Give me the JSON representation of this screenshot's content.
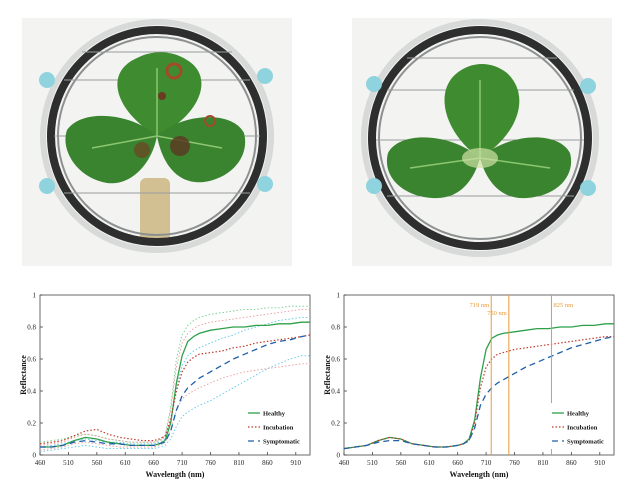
{
  "colors": {
    "healthy": "#2ea04a",
    "incubation": "#c0392b",
    "symptomatic": "#1f5fa8",
    "light_green": "#6fd08a",
    "light_red": "#e89a9a",
    "light_blue": "#5bc8e8",
    "marker": "#e69a3c",
    "leaf": "#3d8a2e",
    "ring": "#2e2e2e",
    "clip": "#8fd3de"
  },
  "photos": [
    {
      "name": "infected-leaf-photo",
      "icon": "strawberry-leaf-with-lesions"
    },
    {
      "name": "healthy-leaf-photo",
      "icon": "strawberry-leaf"
    }
  ],
  "chart_data": [
    {
      "type": "line",
      "title": "",
      "xlabel": "Wavelength (nm)",
      "ylabel": "Reflectance",
      "xlim": [
        460,
        935
      ],
      "ylim": [
        0,
        1
      ],
      "x_ticks": [
        460,
        510,
        560,
        610,
        660,
        710,
        760,
        810,
        860,
        910
      ],
      "y_ticks": [
        0,
        0.2,
        0.4,
        0.6,
        0.8,
        1
      ],
      "y_tick_labels": [
        "0",
        "0.2",
        "0.4",
        "0.6",
        "0.8",
        "1"
      ],
      "grid": false,
      "legend": "bottom-right",
      "legend_entries": [
        "Healthy",
        "Incubation",
        "Symptomatic"
      ],
      "x": [
        460,
        480,
        500,
        520,
        540,
        560,
        580,
        600,
        620,
        640,
        660,
        670,
        680,
        690,
        700,
        710,
        720,
        730,
        740,
        760,
        780,
        800,
        820,
        840,
        860,
        880,
        900,
        920,
        935
      ],
      "series": [
        {
          "name": "Healthy",
          "style": "solid",
          "color": "healthy",
          "values": [
            0.05,
            0.05,
            0.06,
            0.09,
            0.11,
            0.1,
            0.08,
            0.07,
            0.06,
            0.06,
            0.06,
            0.07,
            0.09,
            0.2,
            0.45,
            0.62,
            0.71,
            0.74,
            0.76,
            0.78,
            0.79,
            0.8,
            0.8,
            0.81,
            0.81,
            0.82,
            0.82,
            0.83,
            0.83
          ]
        },
        {
          "name": "Incubation",
          "style": "dotted",
          "color": "incubation",
          "values": [
            0.07,
            0.08,
            0.09,
            0.12,
            0.15,
            0.16,
            0.13,
            0.11,
            0.1,
            0.09,
            0.09,
            0.1,
            0.12,
            0.22,
            0.4,
            0.52,
            0.58,
            0.61,
            0.63,
            0.64,
            0.65,
            0.67,
            0.68,
            0.7,
            0.71,
            0.72,
            0.73,
            0.74,
            0.75
          ]
        },
        {
          "name": "Symptomatic",
          "style": "dashed",
          "color": "symptomatic",
          "values": [
            0.05,
            0.05,
            0.06,
            0.08,
            0.09,
            0.08,
            0.07,
            0.07,
            0.06,
            0.06,
            0.06,
            0.07,
            0.08,
            0.15,
            0.28,
            0.37,
            0.42,
            0.45,
            0.48,
            0.52,
            0.56,
            0.6,
            0.63,
            0.66,
            0.69,
            0.71,
            0.72,
            0.74,
            0.75
          ]
        },
        {
          "name": "",
          "style": "dotted",
          "color": "light_green",
          "values": [
            0.08,
            0.09,
            0.1,
            0.12,
            0.13,
            0.12,
            0.1,
            0.09,
            0.08,
            0.08,
            0.08,
            0.09,
            0.12,
            0.3,
            0.6,
            0.75,
            0.81,
            0.84,
            0.86,
            0.88,
            0.89,
            0.9,
            0.91,
            0.91,
            0.92,
            0.92,
            0.93,
            0.93,
            0.93
          ]
        },
        {
          "name": "",
          "style": "dotted",
          "color": "light_red",
          "values": [
            0.06,
            0.07,
            0.08,
            0.11,
            0.13,
            0.12,
            0.1,
            0.09,
            0.08,
            0.08,
            0.08,
            0.09,
            0.11,
            0.28,
            0.55,
            0.7,
            0.76,
            0.79,
            0.81,
            0.83,
            0.84,
            0.85,
            0.86,
            0.87,
            0.88,
            0.89,
            0.9,
            0.91,
            0.91
          ]
        },
        {
          "name": "",
          "style": "dotted",
          "color": "light_red",
          "values": [
            0.03,
            0.04,
            0.05,
            0.07,
            0.08,
            0.07,
            0.06,
            0.05,
            0.05,
            0.05,
            0.05,
            0.06,
            0.08,
            0.15,
            0.28,
            0.35,
            0.38,
            0.4,
            0.42,
            0.45,
            0.48,
            0.5,
            0.52,
            0.53,
            0.54,
            0.55,
            0.56,
            0.57,
            0.57
          ]
        },
        {
          "name": "",
          "style": "dotted",
          "color": "light_blue",
          "values": [
            0.02,
            0.03,
            0.04,
            0.05,
            0.06,
            0.05,
            0.04,
            0.04,
            0.04,
            0.04,
            0.04,
            0.05,
            0.06,
            0.1,
            0.18,
            0.24,
            0.27,
            0.29,
            0.31,
            0.34,
            0.38,
            0.42,
            0.46,
            0.5,
            0.54,
            0.57,
            0.6,
            0.62,
            0.62
          ]
        },
        {
          "name": "",
          "style": "dotted",
          "color": "light_blue",
          "values": [
            0.05,
            0.06,
            0.07,
            0.09,
            0.1,
            0.09,
            0.08,
            0.08,
            0.07,
            0.07,
            0.07,
            0.08,
            0.1,
            0.22,
            0.42,
            0.56,
            0.62,
            0.65,
            0.67,
            0.7,
            0.73,
            0.75,
            0.78,
            0.8,
            0.82,
            0.84,
            0.85,
            0.86,
            0.86
          ]
        }
      ]
    },
    {
      "type": "line",
      "title": "",
      "xlabel": "Wavelength (nm)",
      "ylabel": "Reflectance",
      "xlim": [
        460,
        935
      ],
      "ylim": [
        0,
        1
      ],
      "x_ticks": [
        460,
        510,
        560,
        610,
        660,
        710,
        760,
        810,
        860,
        910
      ],
      "y_ticks": [
        0,
        0.2,
        0.4,
        0.6,
        0.8,
        1
      ],
      "y_tick_labels": [
        "0",
        "0.2",
        "0.4",
        "0.6",
        "0.8",
        "1"
      ],
      "grid": false,
      "legend": "bottom-right",
      "legend_entries": [
        "Healthy",
        "Incubation",
        "Symptomatic"
      ],
      "markers": [
        {
          "x": 719,
          "label": "719 nm"
        },
        {
          "x": 750,
          "label": "750 nm"
        },
        {
          "x": 825,
          "label": "825 nm"
        }
      ],
      "x": [
        460,
        480,
        500,
        520,
        540,
        560,
        580,
        600,
        620,
        640,
        660,
        670,
        680,
        690,
        700,
        710,
        720,
        730,
        740,
        760,
        780,
        800,
        820,
        840,
        860,
        880,
        900,
        920,
        935
      ],
      "series": [
        {
          "name": "Healthy",
          "style": "solid",
          "color": "healthy",
          "values": [
            0.04,
            0.05,
            0.06,
            0.09,
            0.11,
            0.1,
            0.07,
            0.06,
            0.05,
            0.05,
            0.06,
            0.07,
            0.1,
            0.22,
            0.48,
            0.66,
            0.73,
            0.75,
            0.76,
            0.77,
            0.78,
            0.79,
            0.79,
            0.8,
            0.8,
            0.81,
            0.81,
            0.82,
            0.82
          ]
        },
        {
          "name": "Incubation",
          "style": "dotted",
          "color": "incubation",
          "values": [
            0.04,
            0.05,
            0.06,
            0.09,
            0.11,
            0.1,
            0.07,
            0.06,
            0.05,
            0.05,
            0.06,
            0.07,
            0.09,
            0.2,
            0.42,
            0.55,
            0.6,
            0.63,
            0.64,
            0.66,
            0.67,
            0.68,
            0.69,
            0.7,
            0.71,
            0.72,
            0.73,
            0.74,
            0.74
          ]
        },
        {
          "name": "Symptomatic",
          "style": "dashed",
          "color": "symptomatic",
          "values": [
            0.04,
            0.05,
            0.06,
            0.08,
            0.09,
            0.09,
            0.07,
            0.06,
            0.05,
            0.05,
            0.06,
            0.07,
            0.09,
            0.17,
            0.31,
            0.38,
            0.42,
            0.45,
            0.47,
            0.51,
            0.55,
            0.58,
            0.61,
            0.64,
            0.67,
            0.69,
            0.71,
            0.73,
            0.74
          ]
        }
      ]
    }
  ]
}
